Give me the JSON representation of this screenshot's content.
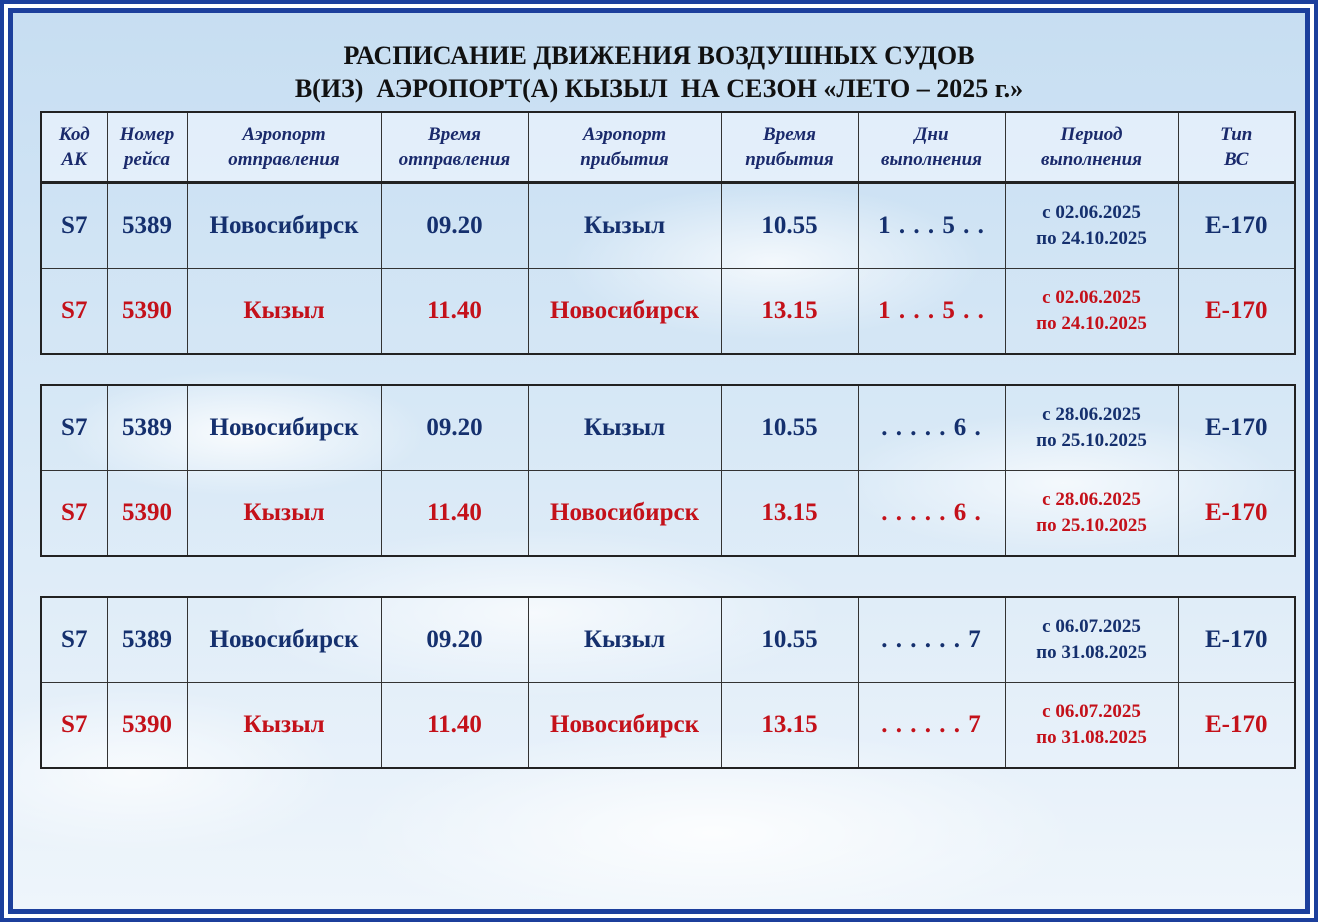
{
  "title": {
    "line1": "РАСПИСАНИЕ ДВИЖЕНИЯ ВОЗДУШНЫХ СУДОВ",
    "line2": "В(ИЗ)  АЭРОПОРТ(А) КЫЗЫЛ  НА СЕЗОН «ЛЕТО – 2025 г.»"
  },
  "headers": {
    "code": "Код\nАК",
    "flight": "Номер\nрейса",
    "dep_airport": "Аэропорт\nотправления",
    "dep_time": "Время\nотправления",
    "arr_airport": "Аэропорт\nприбытия",
    "arr_time": "Время\nприбытия",
    "days": "Дни\nвыполнения",
    "period": "Период\nвыполнения",
    "aircraft": "Тип\nВС"
  },
  "colors": {
    "outbound": "#15306e",
    "inbound": "#c4111a",
    "frame": "#1c3f9c"
  },
  "tables": [
    {
      "rows": [
        {
          "code": "S7",
          "flight": "5389",
          "dep": "Новосибирск",
          "dep_time": "09.20",
          "arr": "Кызыл",
          "arr_time": "10.55",
          "days": "1 . . . 5 . .",
          "period": "с 02.06.2025\nпо 24.10.2025",
          "aircraft": "Е-170"
        },
        {
          "code": "S7",
          "flight": "5390",
          "dep": "Кызыл",
          "dep_time": "11.40",
          "arr": "Новосибирск",
          "arr_time": "13.15",
          "days": "1 . . . 5 . .",
          "period": "с 02.06.2025\nпо 24.10.2025",
          "aircraft": "Е-170"
        }
      ]
    },
    {
      "rows": [
        {
          "code": "S7",
          "flight": "5389",
          "dep": "Новосибирск",
          "dep_time": "09.20",
          "arr": "Кызыл",
          "arr_time": "10.55",
          "days": ". . . . . 6 .",
          "period": "с 28.06.2025\nпо 25.10.2025",
          "aircraft": "Е-170"
        },
        {
          "code": "S7",
          "flight": "5390",
          "dep": "Кызыл",
          "dep_time": "11.40",
          "arr": "Новосибирск",
          "arr_time": "13.15",
          "days": ". . . . . 6 .",
          "period": "с 28.06.2025\nпо 25.10.2025",
          "aircraft": "Е-170"
        }
      ]
    },
    {
      "rows": [
        {
          "code": "S7",
          "flight": "5389",
          "dep": "Новосибирск",
          "dep_time": "09.20",
          "arr": "Кызыл",
          "arr_time": "10.55",
          "days": ". . . . . . 7",
          "period": "с 06.07.2025\nпо 31.08.2025",
          "aircraft": "Е-170"
        },
        {
          "code": "S7",
          "flight": "5390",
          "dep": "Кызыл",
          "dep_time": "11.40",
          "arr": "Новосибирск",
          "arr_time": "13.15",
          "days": ". . . . . . 7",
          "period": "с 06.07.2025\nпо 31.08.2025",
          "aircraft": "Е-170"
        }
      ]
    }
  ]
}
